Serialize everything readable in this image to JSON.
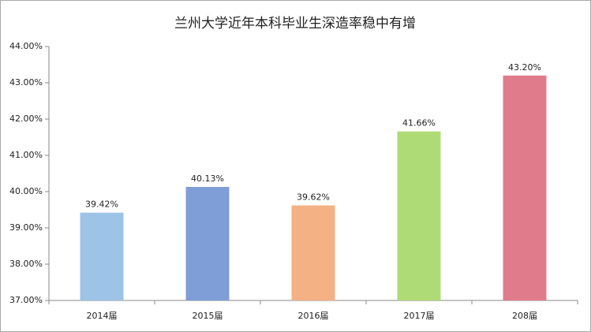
{
  "chart_data": {
    "type": "bar",
    "title": "兰州大学近年本科毕业生深造率稳中有增",
    "categories": [
      "2014届",
      "2015届",
      "2016届",
      "2017届",
      "208届"
    ],
    "values": [
      39.42,
      40.13,
      39.62,
      41.66,
      43.2
    ],
    "value_labels": [
      "39.42%",
      "40.13%",
      "39.62%",
      "41.66%",
      "43.20%"
    ],
    "colors": [
      "#9dc3e6",
      "#7f9dd6",
      "#f4b183",
      "#aedb76",
      "#e07b8b"
    ],
    "ylim": [
      37,
      44
    ],
    "yticks": [
      {
        "value": 37,
        "label": "37.00%"
      },
      {
        "value": 38,
        "label": "38.00%"
      },
      {
        "value": 39,
        "label": "39.00%"
      },
      {
        "value": 40,
        "label": "40.00%"
      },
      {
        "value": 41,
        "label": "41.00%"
      },
      {
        "value": 42,
        "label": "42.00%"
      },
      {
        "value": 43,
        "label": "43.00%"
      },
      {
        "value": 44,
        "label": "44.00%"
      }
    ],
    "grid": false
  }
}
